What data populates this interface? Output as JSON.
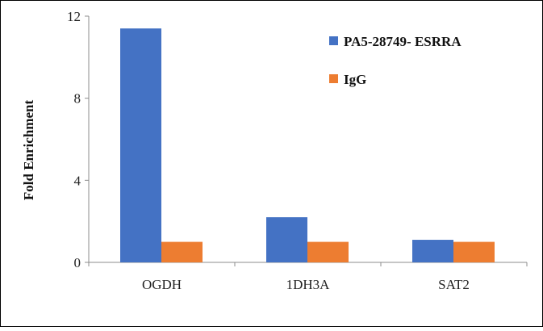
{
  "chart_data": {
    "type": "bar",
    "categories": [
      "OGDH",
      "1DH3A",
      "SAT2"
    ],
    "series": [
      {
        "name": "PA5-28749- ESRRA",
        "values": [
          11.4,
          2.2,
          1.1
        ],
        "color": "#4472C4"
      },
      {
        "name": "IgG",
        "values": [
          1.0,
          1.0,
          1.0
        ],
        "color": "#ED7D31"
      }
    ],
    "title": "",
    "xlabel": "",
    "ylabel": "Fold Enrichment",
    "ylim": [
      0,
      12
    ],
    "yticks": [
      0,
      4,
      8,
      12
    ],
    "grid": false,
    "legend_position": "top-right"
  }
}
